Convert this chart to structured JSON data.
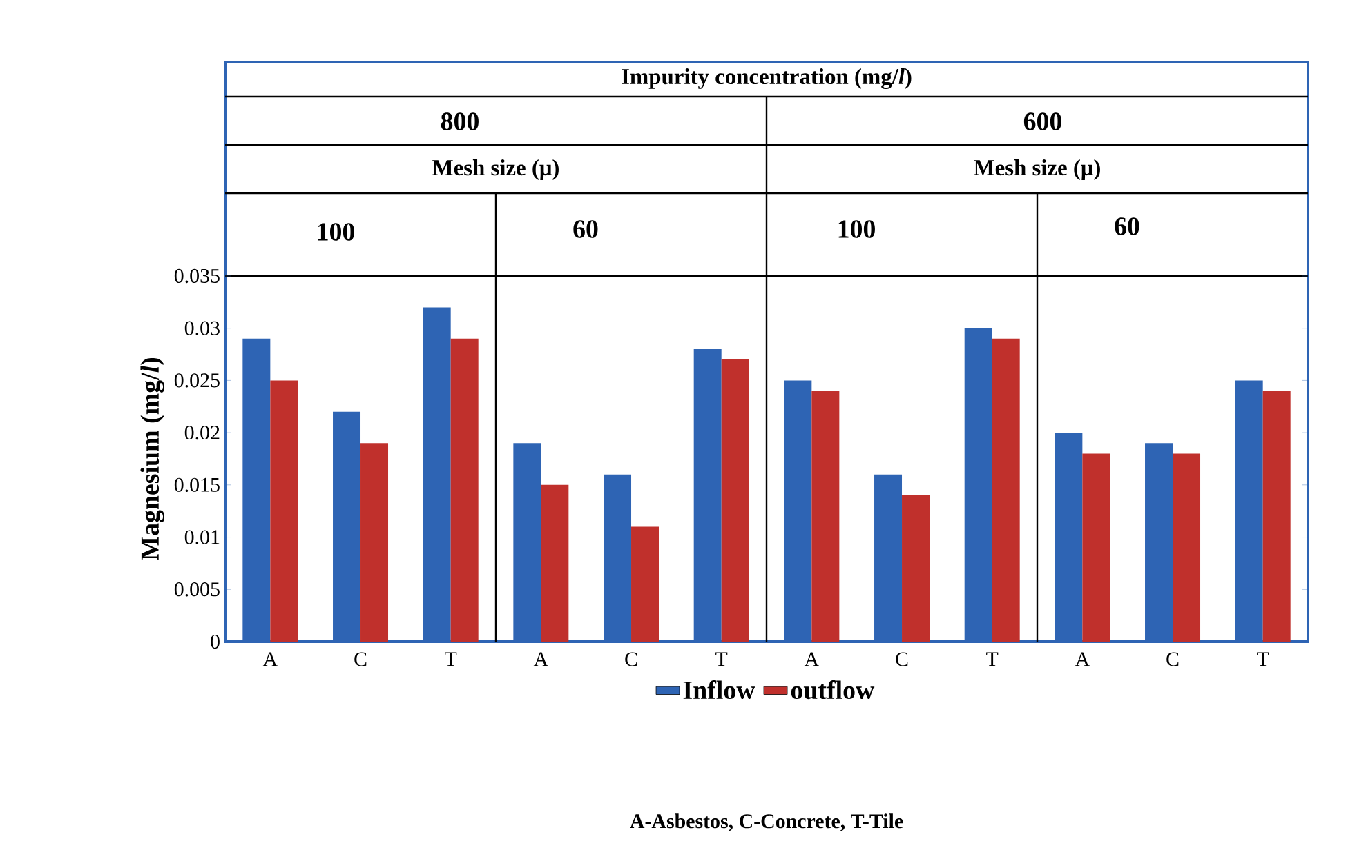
{
  "chart_data": {
    "type": "bar",
    "ylabel": "Magnesium (mg/*l*)",
    "categories": [
      "A",
      "C",
      "T",
      "A",
      "C",
      "T",
      "A",
      "C",
      "T",
      "A",
      "C",
      "T"
    ],
    "series": [
      {
        "name": "Inflow",
        "color": "#2e64b4",
        "values": [
          0.029,
          0.022,
          0.032,
          0.019,
          0.016,
          0.028,
          0.025,
          0.016,
          0.03,
          0.02,
          0.019,
          0.025
        ]
      },
      {
        "name": "outflow",
        "color": "#c0302c",
        "values": [
          0.025,
          0.019,
          0.029,
          0.015,
          0.011,
          0.027,
          0.024,
          0.014,
          0.029,
          0.018,
          0.018,
          0.024
        ]
      }
    ],
    "ylim": [
      0,
      0.035
    ],
    "yticks": [
      0,
      0.005,
      0.01,
      0.015,
      0.02,
      0.025,
      0.03,
      0.035
    ],
    "legend": "bottom",
    "grid": false,
    "annotations": [
      "Impurity concentration (mg/*l*)",
      "800",
      "600",
      "Mesh size (μ)",
      "Mesh size (μ)",
      "100",
      "60",
      "100",
      "60",
      "A-Asbestos, C-Concrete, T-Tile"
    ]
  }
}
